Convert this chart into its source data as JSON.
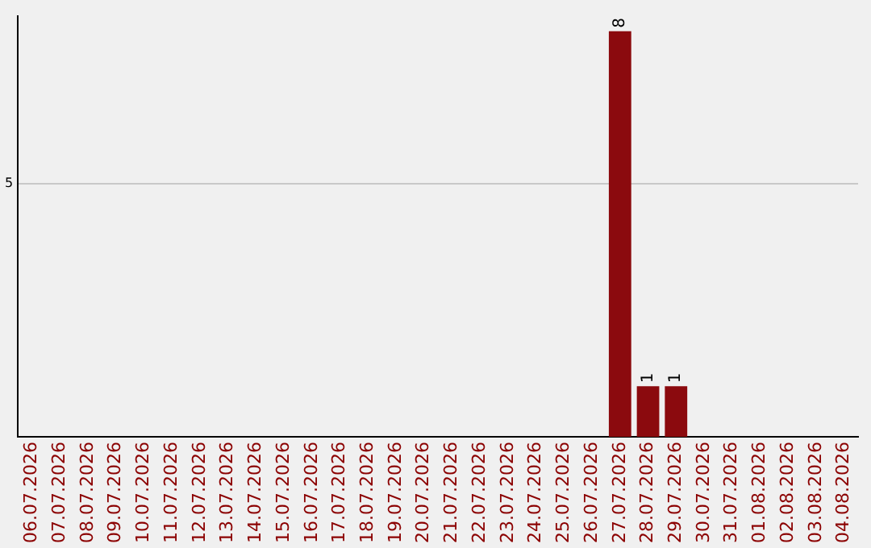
{
  "chart_data": {
    "type": "bar",
    "categories": [
      "06.07.2026",
      "07.07.2026",
      "08.07.2026",
      "09.07.2026",
      "10.07.2026",
      "11.07.2026",
      "12.07.2026",
      "13.07.2026",
      "14.07.2026",
      "15.07.2026",
      "16.07.2026",
      "17.07.2026",
      "18.07.2026",
      "19.07.2026",
      "20.07.2026",
      "21.07.2026",
      "22.07.2026",
      "23.07.2026",
      "24.07.2026",
      "25.07.2026",
      "26.07.2026",
      "27.07.2026",
      "28.07.2026",
      "29.07.2026",
      "30.07.2026",
      "31.07.2026",
      "01.08.2026",
      "02.08.2026",
      "03.08.2026",
      "04.08.2026"
    ],
    "values": [
      null,
      null,
      null,
      null,
      null,
      null,
      null,
      null,
      null,
      null,
      null,
      null,
      null,
      null,
      null,
      null,
      null,
      null,
      null,
      null,
      null,
      8,
      1,
      1,
      null,
      null,
      null,
      null,
      null,
      null
    ],
    "data_labels": true,
    "color": "#8b0a0e",
    "ylim": [
      0,
      8.3
    ],
    "yticks": [
      5
    ],
    "grid": "y",
    "legend": false
  }
}
